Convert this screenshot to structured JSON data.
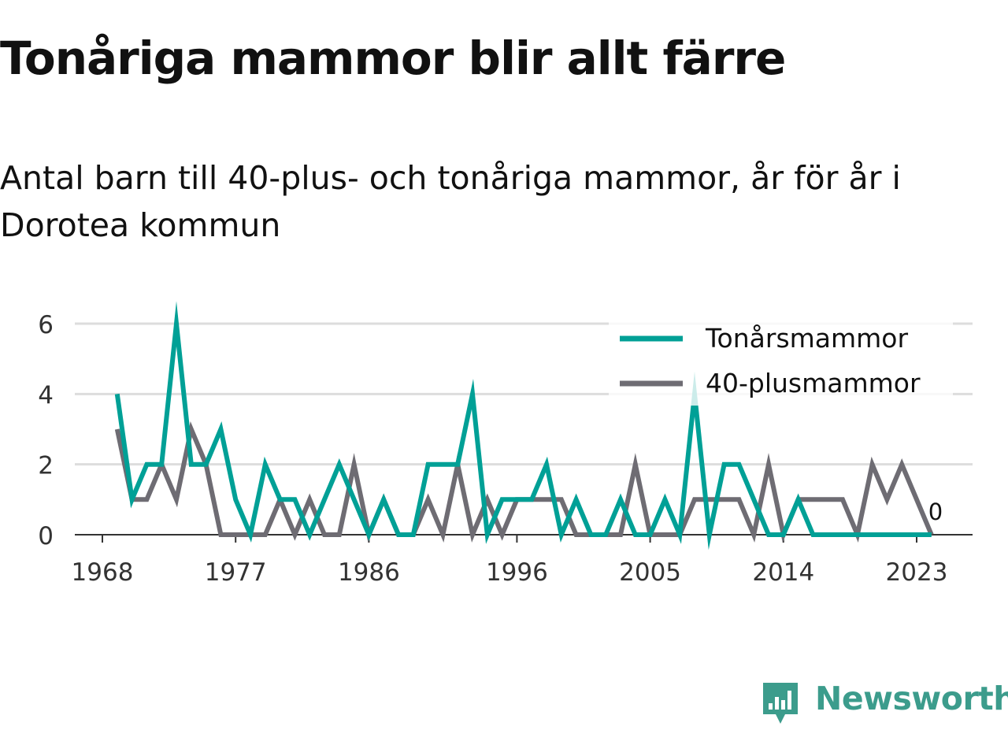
{
  "title": "Tonåriga mammor blir allt färre",
  "subtitle": "Antal barn till 40-plus- och tonåriga mammor, år för år i Dorotea kommun",
  "brand": {
    "name": "Newsworthy",
    "color": "#3c9c8c"
  },
  "chart_data": {
    "type": "line",
    "title": "Tonåriga mammor blir allt färre",
    "subtitle": "Antal barn till 40-plus- och tonåriga mammor, år för år i Dorotea kommun",
    "xlabel": "",
    "ylabel": "",
    "xlim": [
      1968,
      2024
    ],
    "ylim": [
      0,
      6
    ],
    "x_ticks": [
      1968,
      1977,
      1986,
      1996,
      2005,
      2014,
      2023
    ],
    "y_ticks": [
      0,
      2,
      4,
      6
    ],
    "grid": true,
    "legend_position": "top-right",
    "x": [
      1969,
      1970,
      1971,
      1972,
      1973,
      1974,
      1975,
      1976,
      1977,
      1978,
      1979,
      1980,
      1981,
      1982,
      1983,
      1984,
      1985,
      1986,
      1987,
      1988,
      1989,
      1990,
      1991,
      1992,
      1993,
      1994,
      1995,
      1996,
      1997,
      1998,
      1999,
      2000,
      2001,
      2002,
      2003,
      2004,
      2005,
      2006,
      2007,
      2008,
      2009,
      2010,
      2011,
      2012,
      2013,
      2014,
      2015,
      2016,
      2017,
      2018,
      2019,
      2020,
      2021,
      2022,
      2023,
      2024
    ],
    "series": [
      {
        "name": "Tonårsmammor",
        "color": "#00a096",
        "values": [
          4,
          1,
          2,
          2,
          6,
          2,
          2,
          3,
          1,
          0,
          2,
          1,
          1,
          0,
          1,
          2,
          1,
          0,
          1,
          0,
          0,
          2,
          2,
          2,
          4,
          0,
          1,
          1,
          1,
          2,
          0,
          1,
          0,
          0,
          1,
          0,
          0,
          1,
          0,
          4,
          0,
          2,
          2,
          1,
          0,
          0,
          1,
          0,
          0,
          0,
          0,
          0,
          0,
          0,
          0,
          0
        ]
      },
      {
        "name": "40-plusmammor",
        "color": "#6e6c73",
        "values": [
          3,
          1,
          1,
          2,
          1,
          3,
          2,
          0,
          0,
          0,
          0,
          1,
          0,
          1,
          0,
          0,
          2,
          0,
          1,
          0,
          0,
          1,
          0,
          2,
          0,
          1,
          0,
          1,
          1,
          1,
          1,
          0,
          0,
          0,
          0,
          2,
          0,
          0,
          0,
          1,
          1,
          1,
          1,
          0,
          2,
          0,
          1,
          1,
          1,
          1,
          0,
          2,
          1,
          2,
          1,
          0
        ]
      }
    ],
    "annotations": [
      {
        "year": 2024,
        "value": 0,
        "text": "0"
      }
    ]
  }
}
